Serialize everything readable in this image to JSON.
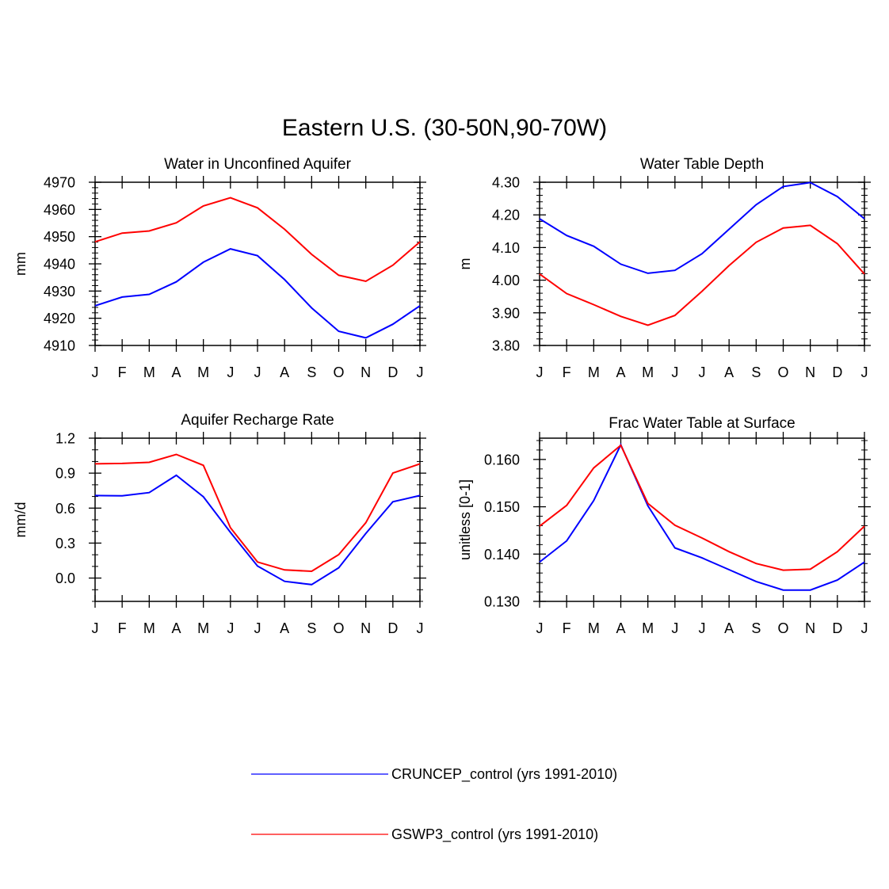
{
  "figure": {
    "title": "Eastern U.S. (30-50N,90-70W)"
  },
  "legend": [
    {
      "label": "CRUNCEP_control (yrs 1991-2010)",
      "color": "#0000ff"
    },
    {
      "label": "GSWP3_control (yrs 1991-2010)",
      "color": "#ff0000"
    }
  ],
  "chart_data": [
    {
      "type": "line",
      "title": "Water in Unconfined Aquifer",
      "xlabel": "",
      "ylabel": "mm",
      "categories": [
        "J",
        "F",
        "M",
        "A",
        "M",
        "J",
        "J",
        "A",
        "S",
        "O",
        "N",
        "D",
        "J"
      ],
      "ylim": [
        4910,
        4970
      ],
      "yticks": [
        4910,
        4920,
        4930,
        4940,
        4950,
        4960,
        4970
      ],
      "ytick_labels": [
        "4910",
        "4920",
        "4930",
        "4940",
        "4950",
        "4960",
        "4970"
      ],
      "series": [
        {
          "name": "CRUNCEP_control (yrs 1991-2010)",
          "color": "#0000ff",
          "values": [
            4924.6,
            4927.8,
            4928.8,
            4933.4,
            4940.6,
            4945.5,
            4943.0,
            4934.2,
            4923.8,
            4915.2,
            4912.8,
            4917.8,
            4924.6
          ]
        },
        {
          "name": "GSWP3_control (yrs 1991-2010)",
          "color": "#ff0000",
          "values": [
            4948.1,
            4951.3,
            4952.1,
            4955.1,
            4961.3,
            4964.3,
            4960.6,
            4952.7,
            4943.5,
            4935.8,
            4933.6,
            4939.5,
            4948.1
          ]
        }
      ]
    },
    {
      "type": "line",
      "title": "Water Table Depth",
      "xlabel": "",
      "ylabel": "m",
      "categories": [
        "J",
        "F",
        "M",
        "A",
        "M",
        "J",
        "J",
        "A",
        "S",
        "O",
        "N",
        "D",
        "J"
      ],
      "ylim": [
        3.8,
        4.3
      ],
      "yticks": [
        3.8,
        3.9,
        4.0,
        4.1,
        4.2,
        4.3
      ],
      "ytick_labels": [
        "3.80",
        "3.90",
        "4.00",
        "4.10",
        "4.20",
        "4.30"
      ],
      "series": [
        {
          "name": "CRUNCEP_control (yrs 1991-2010)",
          "color": "#0000ff",
          "values": [
            4.188,
            4.137,
            4.104,
            4.049,
            4.021,
            4.03,
            4.081,
            4.156,
            4.231,
            4.287,
            4.299,
            4.256,
            4.188
          ]
        },
        {
          "name": "GSWP3_control (yrs 1991-2010)",
          "color": "#ff0000",
          "values": [
            4.019,
            3.959,
            3.925,
            3.889,
            3.862,
            3.892,
            3.966,
            4.045,
            4.116,
            4.16,
            4.168,
            4.112,
            4.019
          ]
        }
      ]
    },
    {
      "type": "line",
      "title": "Aquifer Recharge Rate",
      "xlabel": "",
      "ylabel": "mm/d",
      "categories": [
        "J",
        "F",
        "M",
        "A",
        "M",
        "J",
        "J",
        "A",
        "S",
        "O",
        "N",
        "D",
        "J"
      ],
      "ylim": [
        -0.2,
        1.2
      ],
      "yticks": [
        0.0,
        0.3,
        0.6,
        0.9,
        1.2
      ],
      "ytick_labels": [
        "0.0",
        "0.3",
        "0.6",
        "0.9",
        "1.2"
      ],
      "series": [
        {
          "name": "CRUNCEP_control (yrs 1991-2010)",
          "color": "#0000ff",
          "values": [
            0.708,
            0.705,
            0.733,
            0.881,
            0.697,
            0.392,
            0.103,
            -0.028,
            -0.056,
            0.088,
            0.383,
            0.654,
            0.708
          ]
        },
        {
          "name": "GSWP3_control (yrs 1991-2010)",
          "color": "#ff0000",
          "values": [
            0.98,
            0.983,
            0.993,
            1.061,
            0.967,
            0.432,
            0.138,
            0.07,
            0.058,
            0.201,
            0.475,
            0.9,
            0.98
          ]
        }
      ]
    },
    {
      "type": "line",
      "title": "Frac Water Table at Surface",
      "xlabel": "",
      "ylabel": "unitless [0-1]",
      "categories": [
        "J",
        "F",
        "M",
        "A",
        "M",
        "J",
        "J",
        "A",
        "S",
        "O",
        "N",
        "D",
        "J"
      ],
      "ylim": [
        0.13,
        0.1645
      ],
      "yticks": [
        0.13,
        0.14,
        0.15,
        0.16
      ],
      "ytick_labels": [
        "0.130",
        "0.140",
        "0.150",
        "0.160"
      ],
      "series": [
        {
          "name": "CRUNCEP_control (yrs 1991-2010)",
          "color": "#0000ff",
          "values": [
            0.1383,
            0.1428,
            0.1513,
            0.1631,
            0.1502,
            0.1413,
            0.1392,
            0.1367,
            0.1342,
            0.1324,
            0.1324,
            0.1345,
            0.1383
          ]
        },
        {
          "name": "GSWP3_control (yrs 1991-2010)",
          "color": "#ff0000",
          "values": [
            0.1459,
            0.1503,
            0.1582,
            0.163,
            0.1507,
            0.1461,
            0.1434,
            0.1405,
            0.138,
            0.1366,
            0.1368,
            0.1405,
            0.1459
          ]
        }
      ]
    }
  ]
}
